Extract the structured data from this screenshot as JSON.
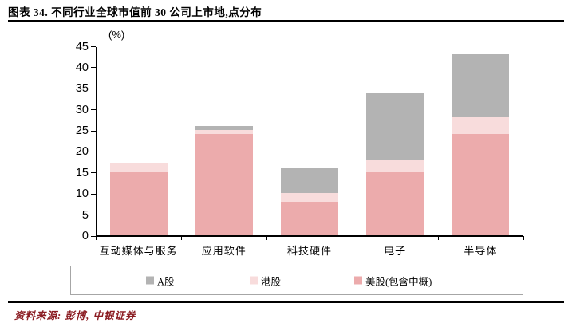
{
  "header": {
    "title": "图表 34. 不同行业全球市值前 30 公司上市地,点分布"
  },
  "chart_data": {
    "type": "bar",
    "stacked": true,
    "title": "不同行业全球市值前 30 公司上市地,点分布",
    "unit_label": "(%)",
    "categories": [
      "互动媒体与服务",
      "应用软件",
      "科技硬件",
      "电子",
      "半导体"
    ],
    "series": [
      {
        "name": "美股(包含中概)",
        "color": "#ecabac",
        "values": [
          15,
          24,
          8,
          15,
          24
        ]
      },
      {
        "name": "港股",
        "color": "#f8dcdc",
        "values": [
          2,
          1,
          2,
          3,
          4
        ]
      },
      {
        "name": "A股",
        "color": "#b3b3b3",
        "values": [
          0,
          1,
          6,
          16,
          15
        ]
      }
    ],
    "stack_totals": [
      17,
      26,
      16,
      34,
      43
    ],
    "y_axis": {
      "min": 0,
      "max": 45,
      "step": 5,
      "ticks": [
        0,
        5,
        10,
        15,
        20,
        25,
        30,
        35,
        40,
        45
      ]
    },
    "grid": false,
    "legend_position": "bottom",
    "legend": [
      {
        "label": "A股",
        "color": "#b3b3b3"
      },
      {
        "label": "港股",
        "color": "#f8dcdc"
      },
      {
        "label": "美股(包含中概)",
        "color": "#ecabac"
      }
    ]
  },
  "footer": {
    "source": "资料来源: 彭博, 中银证券"
  },
  "colors": {
    "a_share": "#b3b3b3",
    "hk_share": "#f8dcdc",
    "us_share": "#ecabac",
    "source_text": "#8b1c22",
    "axis": "#000000",
    "legend_border": "#a6a6a6"
  }
}
